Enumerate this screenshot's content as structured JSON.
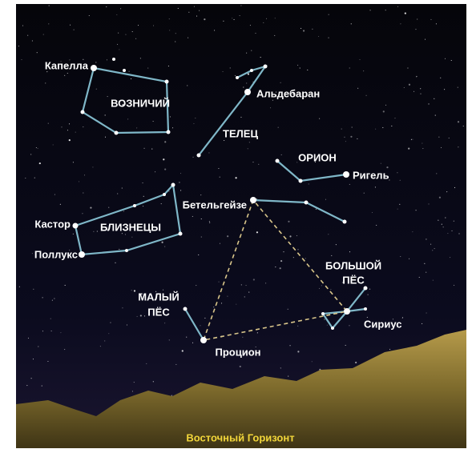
{
  "horizon": "Восточный Горизонт",
  "stars": [
    "Капелла",
    "Альдебаран",
    "Ригель",
    "Бетельгейзе",
    "Кастор",
    "Поллукс",
    "Процион",
    "Сириус"
  ],
  "constellations": [
    [
      "ВОЗНИЧИЙ"
    ],
    [
      "ТЕЛЕЦ"
    ],
    [
      "ОРИОН"
    ],
    [
      "БЛИЗНЕЦЫ"
    ],
    [
      "МАЛЫЙ",
      "ПЁС"
    ],
    [
      "БОЛЬШОЙ",
      "ПЁС"
    ]
  ]
}
